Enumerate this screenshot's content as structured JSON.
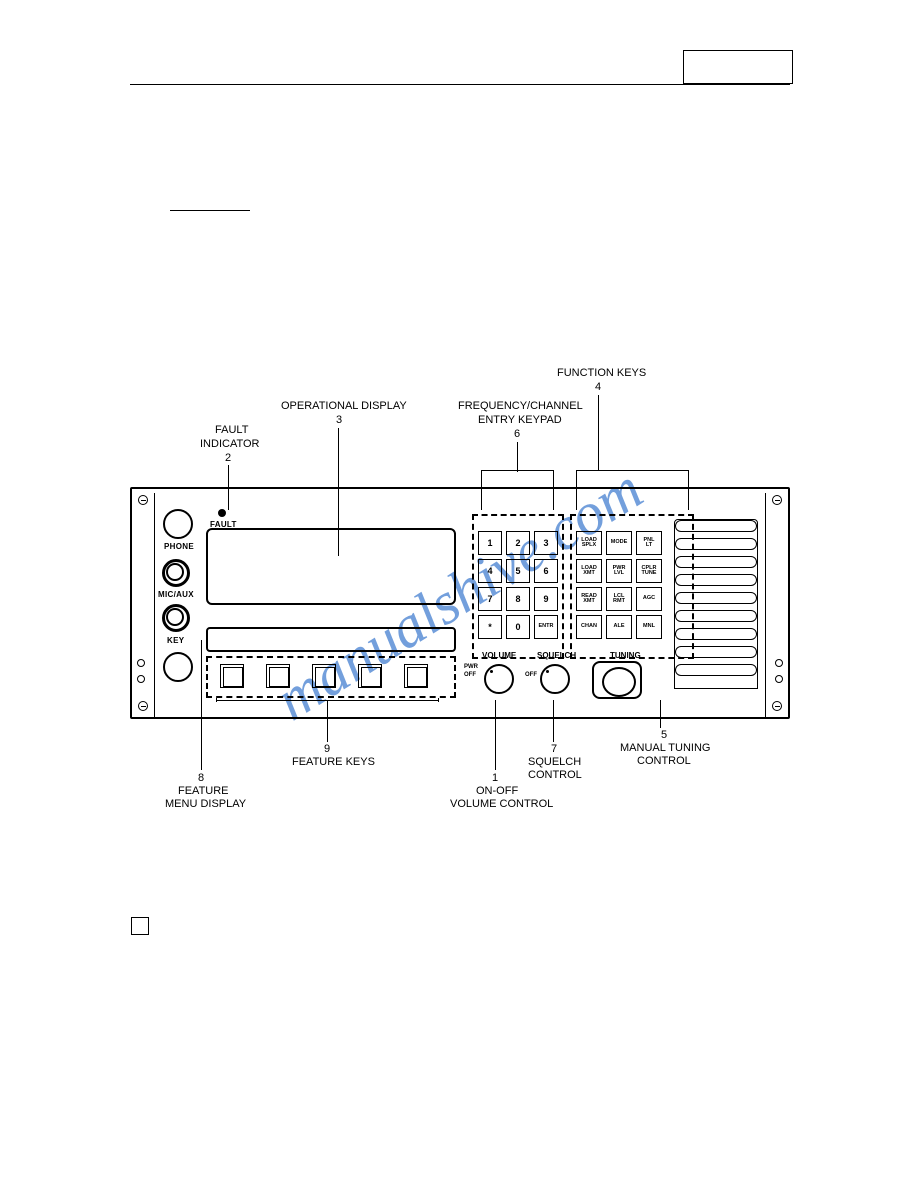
{
  "watermark": "manualshive.com",
  "callouts": {
    "fault_indicator": {
      "title": "FAULT",
      "sub": "INDICATOR",
      "num": "2"
    },
    "operational_display": {
      "title": "OPERATIONAL DISPLAY",
      "num": "3"
    },
    "freq_channel_keypad": {
      "title1": "FREQUENCY/CHANNEL",
      "title2": "ENTRY KEYPAD",
      "num": "6"
    },
    "function_keys": {
      "title": "FUNCTION KEYS",
      "num": "4"
    },
    "manual_tuning": {
      "title1": "MANUAL TUNING",
      "title2": "CONTROL",
      "num": "5"
    },
    "squelch_control": {
      "title1": "SQUELCH",
      "title2": "CONTROL",
      "num": "7"
    },
    "on_off_volume": {
      "title1": "ON-OFF",
      "title2": "VOLUME CONTROL",
      "num": "1"
    },
    "feature_keys": {
      "title": "FEATURE KEYS",
      "num": "9"
    },
    "feature_menu_display": {
      "title1": "FEATURE",
      "title2": "MENU DISPLAY",
      "num": "8"
    }
  },
  "panel_labels": {
    "fault": "FAULT",
    "phone": "PHONE",
    "mic_aux": "MIC/AUX",
    "key": "KEY",
    "volume": "VOLUME",
    "squelch": "SQUELCH",
    "tuning": "TUNING",
    "pwr_off": "PWR",
    "off": "OFF",
    "off2": "OFF"
  },
  "keypad_numeric": [
    [
      "1",
      "2",
      "3"
    ],
    [
      "4",
      "5",
      "6"
    ],
    [
      "7",
      "8",
      "9"
    ],
    [
      "*",
      "0",
      "ENTR"
    ]
  ],
  "keypad_functions": [
    [
      "LOAD\nSPLX",
      "MODE",
      "PNL\nLT"
    ],
    [
      "LOAD\nXMT",
      "PWR\nLVL",
      "CPLR\nTUNE"
    ],
    [
      "READ\nXMT",
      "LCL\nRMT",
      "AGC"
    ],
    [
      "CHAN",
      "ALE",
      "MNL"
    ]
  ],
  "colors": {
    "watermark": "#5b8fd6",
    "line": "#000000",
    "bg": "#ffffff"
  }
}
